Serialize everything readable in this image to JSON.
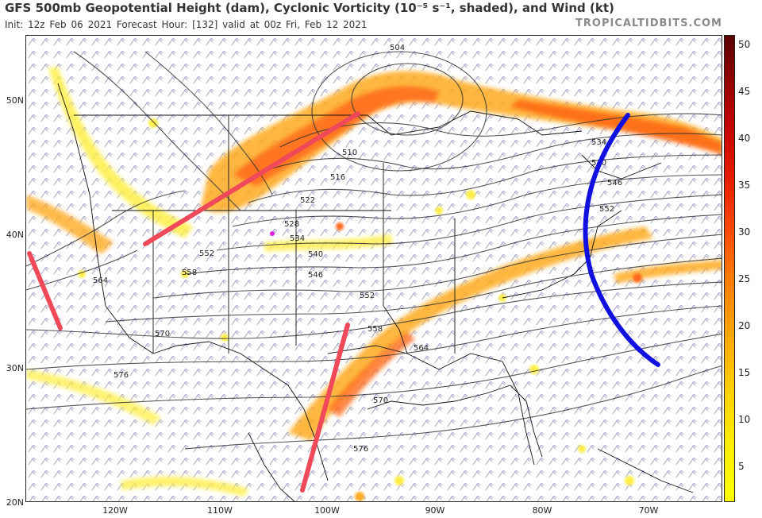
{
  "header": {
    "title": "GFS 500mb Geopotential Height (dam), Cyclonic Vorticity (10⁻⁵ s⁻¹, shaded), and Wind (kt)",
    "subtitle": "Init: 12z Feb 06 2021   Forecast Hour: [132]   valid at 00z Fri, Feb 12 2021",
    "brand": "TROPICALTIDBITS.COM"
  },
  "axes": {
    "lat_labels": [
      "50N",
      "40N",
      "30N",
      "20N"
    ],
    "lon_labels": [
      "120W",
      "110W",
      "100W",
      "90W",
      "80W",
      "70W"
    ]
  },
  "colorbar": {
    "labels": [
      "50",
      "45",
      "40",
      "35",
      "30",
      "25",
      "20",
      "15",
      "10",
      "5"
    ],
    "low_color": "#ffff00",
    "high_color": "#5a0000"
  },
  "height_contour_labels": [
    "504",
    "510",
    "516",
    "522",
    "528",
    "534",
    "540",
    "546",
    "552",
    "558",
    "564",
    "570",
    "576",
    "552",
    "558",
    "564",
    "570",
    "576",
    "534",
    "540",
    "546",
    "552"
  ],
  "annotations": {
    "trough_axis_color": "#f0495a",
    "ridge_axis_color": "#1010e0",
    "low_center_color": "#e020e0"
  },
  "shading_colors": {
    "light": "#ffee44",
    "mid": "#ffaa22",
    "strong": "#ff6a1a",
    "max": "#e64a00"
  }
}
